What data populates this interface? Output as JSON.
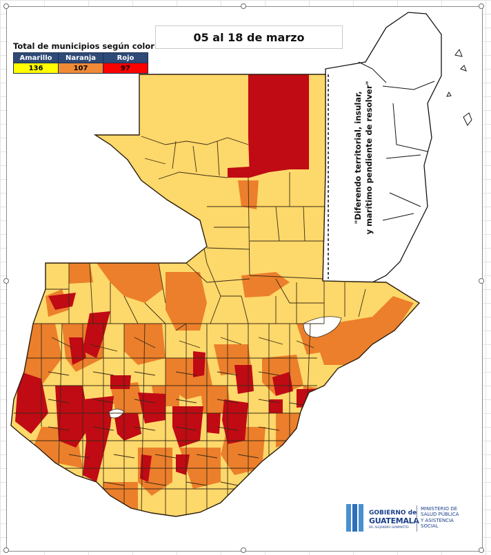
{
  "title": "05 al 18 de marzo",
  "legend": {
    "heading": "Total de municipios según color",
    "columns": [
      {
        "label": "Amarillo",
        "count": "136",
        "color": "#ffff00"
      },
      {
        "label": "Naranja",
        "count": "107",
        "color": "#f08a36"
      },
      {
        "label": "Rojo",
        "count": "97",
        "color": "#ff0000"
      }
    ]
  },
  "map_colors": {
    "amarillo_fill": "#fdd86a",
    "naranja_fill": "#ec7f2b",
    "rojo_fill": "#c00a14",
    "border": "#3a2a16"
  },
  "dispute_note": {
    "line1": "\"Diferendo territorial, insular,",
    "line2": "y marítimo pendiente de resolver\""
  },
  "logo": {
    "gobierno": "GOBIERNO de",
    "guatemala": "GUATEMALA",
    "subtitle": "DR. ALEJANDRO GIAMMATTEI",
    "ministry_line1": "MINISTERIO DE",
    "ministry_line2": "SALUD PÚBLICA",
    "ministry_line3": "Y ASISTENCIA",
    "ministry_line4": "SOCIAL"
  }
}
